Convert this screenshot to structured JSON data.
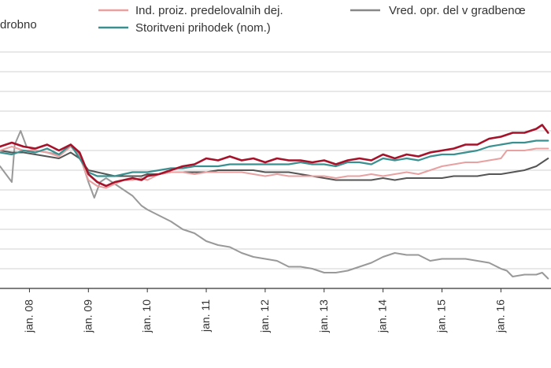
{
  "chart_data": {
    "type": "line",
    "title": "",
    "xlabel": "",
    "ylabel": "",
    "x_start": 2007.5,
    "x_end": 2016.85,
    "ylim": [
      0,
      12
    ],
    "grid": true,
    "x_ticks": [
      {
        "label": "jan. 08",
        "x": 2008
      },
      {
        "label": "jan. 09",
        "x": 2009
      },
      {
        "label": "jan. 10",
        "x": 2010
      },
      {
        "label": "jan. 11",
        "x": 2011
      },
      {
        "label": "jan. 12",
        "x": 2012
      },
      {
        "label": "jan. 13",
        "x": 2013
      },
      {
        "label": "jan. 14",
        "x": 2014
      },
      {
        "label": "jan. 15",
        "x": 2015
      },
      {
        "label": "jan. 16",
        "x": 2016
      }
    ],
    "legend": [
      {
        "series": "retail",
        "label": "drobno",
        "color": "#555555"
      },
      {
        "series": "manufacturing",
        "label": "Ind. proiz. predelovalnih dej.",
        "color": "#e8a0a0"
      },
      {
        "series": "services",
        "label": "Storitveni prihodek (nom.)",
        "color": "#3a9090"
      },
      {
        "series": "construction",
        "label": "Vred. opr. del v gradbenœ",
        "color": "#888888"
      }
    ],
    "series": [
      {
        "name": "retail",
        "color": "#a5122a",
        "width": 2.6,
        "points": [
          [
            2007.5,
            7.2
          ],
          [
            2007.7,
            7.4
          ],
          [
            2007.9,
            7.2
          ],
          [
            2008.1,
            7.1
          ],
          [
            2008.3,
            7.3
          ],
          [
            2008.5,
            7.0
          ],
          [
            2008.7,
            7.3
          ],
          [
            2008.85,
            6.9
          ],
          [
            2009.0,
            5.8
          ],
          [
            2009.15,
            5.4
          ],
          [
            2009.3,
            5.2
          ],
          [
            2009.45,
            5.4
          ],
          [
            2009.6,
            5.5
          ],
          [
            2009.75,
            5.6
          ],
          [
            2009.9,
            5.5
          ],
          [
            2010.0,
            5.7
          ],
          [
            2010.2,
            5.8
          ],
          [
            2010.4,
            6.0
          ],
          [
            2010.6,
            6.2
          ],
          [
            2010.8,
            6.3
          ],
          [
            2011.0,
            6.6
          ],
          [
            2011.2,
            6.5
          ],
          [
            2011.4,
            6.7
          ],
          [
            2011.6,
            6.5
          ],
          [
            2011.8,
            6.6
          ],
          [
            2012.0,
            6.4
          ],
          [
            2012.2,
            6.6
          ],
          [
            2012.4,
            6.5
          ],
          [
            2012.6,
            6.5
          ],
          [
            2012.8,
            6.4
          ],
          [
            2013.0,
            6.5
          ],
          [
            2013.2,
            6.3
          ],
          [
            2013.4,
            6.5
          ],
          [
            2013.6,
            6.6
          ],
          [
            2013.8,
            6.5
          ],
          [
            2014.0,
            6.8
          ],
          [
            2014.2,
            6.6
          ],
          [
            2014.4,
            6.8
          ],
          [
            2014.6,
            6.7
          ],
          [
            2014.8,
            6.9
          ],
          [
            2015.0,
            7.0
          ],
          [
            2015.2,
            7.1
          ],
          [
            2015.4,
            7.3
          ],
          [
            2015.6,
            7.3
          ],
          [
            2015.8,
            7.6
          ],
          [
            2016.0,
            7.7
          ],
          [
            2016.2,
            7.9
          ],
          [
            2016.4,
            7.9
          ],
          [
            2016.6,
            8.1
          ],
          [
            2016.7,
            8.3
          ],
          [
            2016.8,
            7.9
          ]
        ]
      },
      {
        "name": "manufacturing",
        "color": "#e8a0a0",
        "width": 2.0,
        "points": [
          [
            2007.5,
            7.0
          ],
          [
            2007.7,
            7.2
          ],
          [
            2007.9,
            7.0
          ],
          [
            2008.1,
            7.0
          ],
          [
            2008.3,
            6.9
          ],
          [
            2008.5,
            6.7
          ],
          [
            2008.7,
            7.2
          ],
          [
            2008.85,
            6.7
          ],
          [
            2009.0,
            5.5
          ],
          [
            2009.15,
            5.2
          ],
          [
            2009.3,
            5.1
          ],
          [
            2009.45,
            5.3
          ],
          [
            2009.6,
            5.5
          ],
          [
            2009.75,
            5.5
          ],
          [
            2009.9,
            5.6
          ],
          [
            2010.0,
            5.5
          ],
          [
            2010.2,
            5.8
          ],
          [
            2010.4,
            5.9
          ],
          [
            2010.6,
            5.9
          ],
          [
            2010.8,
            5.8
          ],
          [
            2011.0,
            5.9
          ],
          [
            2011.2,
            5.9
          ],
          [
            2011.4,
            5.9
          ],
          [
            2011.6,
            5.9
          ],
          [
            2011.8,
            5.8
          ],
          [
            2012.0,
            5.7
          ],
          [
            2012.2,
            5.8
          ],
          [
            2012.4,
            5.7
          ],
          [
            2012.6,
            5.7
          ],
          [
            2012.8,
            5.7
          ],
          [
            2013.0,
            5.7
          ],
          [
            2013.2,
            5.6
          ],
          [
            2013.4,
            5.7
          ],
          [
            2013.6,
            5.7
          ],
          [
            2013.8,
            5.8
          ],
          [
            2014.0,
            5.7
          ],
          [
            2014.2,
            5.8
          ],
          [
            2014.4,
            5.9
          ],
          [
            2014.6,
            5.8
          ],
          [
            2014.8,
            6.0
          ],
          [
            2015.0,
            6.2
          ],
          [
            2015.2,
            6.3
          ],
          [
            2015.4,
            6.4
          ],
          [
            2015.6,
            6.4
          ],
          [
            2015.8,
            6.5
          ],
          [
            2016.0,
            6.6
          ],
          [
            2016.1,
            7.0
          ],
          [
            2016.2,
            7.0
          ],
          [
            2016.4,
            7.0
          ],
          [
            2016.6,
            7.1
          ],
          [
            2016.8,
            7.1
          ]
        ]
      },
      {
        "name": "services",
        "color": "#3a9090",
        "width": 2.2,
        "points": [
          [
            2007.5,
            6.9
          ],
          [
            2007.7,
            6.8
          ],
          [
            2007.9,
            7.0
          ],
          [
            2008.1,
            6.9
          ],
          [
            2008.3,
            7.1
          ],
          [
            2008.5,
            6.8
          ],
          [
            2008.7,
            7.3
          ],
          [
            2008.85,
            6.6
          ],
          [
            2009.0,
            5.9
          ],
          [
            2009.15,
            5.7
          ],
          [
            2009.3,
            5.7
          ],
          [
            2009.45,
            5.7
          ],
          [
            2009.6,
            5.8
          ],
          [
            2009.75,
            5.9
          ],
          [
            2009.9,
            5.9
          ],
          [
            2010.0,
            5.9
          ],
          [
            2010.2,
            6.0
          ],
          [
            2010.4,
            6.1
          ],
          [
            2010.6,
            6.1
          ],
          [
            2010.8,
            6.2
          ],
          [
            2011.0,
            6.2
          ],
          [
            2011.2,
            6.2
          ],
          [
            2011.4,
            6.3
          ],
          [
            2011.6,
            6.3
          ],
          [
            2011.8,
            6.3
          ],
          [
            2012.0,
            6.3
          ],
          [
            2012.2,
            6.3
          ],
          [
            2012.4,
            6.3
          ],
          [
            2012.6,
            6.4
          ],
          [
            2012.8,
            6.3
          ],
          [
            2013.0,
            6.3
          ],
          [
            2013.2,
            6.2
          ],
          [
            2013.4,
            6.4
          ],
          [
            2013.6,
            6.4
          ],
          [
            2013.8,
            6.3
          ],
          [
            2014.0,
            6.6
          ],
          [
            2014.2,
            6.5
          ],
          [
            2014.4,
            6.6
          ],
          [
            2014.6,
            6.5
          ],
          [
            2014.8,
            6.7
          ],
          [
            2015.0,
            6.8
          ],
          [
            2015.2,
            6.8
          ],
          [
            2015.4,
            6.9
          ],
          [
            2015.6,
            7.0
          ],
          [
            2015.8,
            7.2
          ],
          [
            2016.0,
            7.3
          ],
          [
            2016.2,
            7.4
          ],
          [
            2016.4,
            7.4
          ],
          [
            2016.6,
            7.5
          ],
          [
            2016.8,
            7.5
          ]
        ]
      },
      {
        "name": "construction",
        "color": "#999999",
        "width": 2.0,
        "points": [
          [
            2007.5,
            6.2
          ],
          [
            2007.6,
            5.8
          ],
          [
            2007.7,
            5.4
          ],
          [
            2007.75,
            7.3
          ],
          [
            2007.85,
            8.0
          ],
          [
            2007.95,
            7.2
          ],
          [
            2008.1,
            7.0
          ],
          [
            2008.3,
            6.9
          ],
          [
            2008.5,
            6.8
          ],
          [
            2008.7,
            7.2
          ],
          [
            2008.85,
            6.8
          ],
          [
            2009.0,
            5.4
          ],
          [
            2009.1,
            4.6
          ],
          [
            2009.2,
            5.4
          ],
          [
            2009.3,
            5.6
          ],
          [
            2009.45,
            5.3
          ],
          [
            2009.6,
            5.0
          ],
          [
            2009.75,
            4.7
          ],
          [
            2009.9,
            4.2
          ],
          [
            2010.0,
            4.0
          ],
          [
            2010.2,
            3.7
          ],
          [
            2010.4,
            3.4
          ],
          [
            2010.6,
            3.0
          ],
          [
            2010.8,
            2.8
          ],
          [
            2011.0,
            2.4
          ],
          [
            2011.2,
            2.2
          ],
          [
            2011.4,
            2.1
          ],
          [
            2011.6,
            1.8
          ],
          [
            2011.8,
            1.6
          ],
          [
            2012.0,
            1.5
          ],
          [
            2012.2,
            1.4
          ],
          [
            2012.4,
            1.1
          ],
          [
            2012.6,
            1.1
          ],
          [
            2012.8,
            1.0
          ],
          [
            2013.0,
            0.8
          ],
          [
            2013.2,
            0.8
          ],
          [
            2013.4,
            0.9
          ],
          [
            2013.6,
            1.1
          ],
          [
            2013.8,
            1.3
          ],
          [
            2014.0,
            1.6
          ],
          [
            2014.2,
            1.8
          ],
          [
            2014.4,
            1.7
          ],
          [
            2014.6,
            1.7
          ],
          [
            2014.8,
            1.4
          ],
          [
            2015.0,
            1.5
          ],
          [
            2015.2,
            1.5
          ],
          [
            2015.4,
            1.5
          ],
          [
            2015.6,
            1.4
          ],
          [
            2015.8,
            1.3
          ],
          [
            2016.0,
            1.0
          ],
          [
            2016.1,
            0.9
          ],
          [
            2016.2,
            0.6
          ],
          [
            2016.4,
            0.7
          ],
          [
            2016.6,
            0.7
          ],
          [
            2016.7,
            0.8
          ],
          [
            2016.8,
            0.5
          ]
        ]
      },
      {
        "name": "construction-dark",
        "color": "#555555",
        "width": 2.0,
        "points": [
          [
            2007.5,
            7.0
          ],
          [
            2007.7,
            6.9
          ],
          [
            2007.9,
            6.9
          ],
          [
            2008.1,
            6.8
          ],
          [
            2008.3,
            6.7
          ],
          [
            2008.5,
            6.6
          ],
          [
            2008.7,
            6.9
          ],
          [
            2008.85,
            6.6
          ],
          [
            2009.0,
            6.0
          ],
          [
            2009.15,
            5.9
          ],
          [
            2009.3,
            5.8
          ],
          [
            2009.45,
            5.7
          ],
          [
            2009.6,
            5.7
          ],
          [
            2009.75,
            5.7
          ],
          [
            2009.9,
            5.7
          ],
          [
            2010.0,
            5.8
          ],
          [
            2010.2,
            5.8
          ],
          [
            2010.4,
            5.9
          ],
          [
            2010.6,
            5.9
          ],
          [
            2010.8,
            5.9
          ],
          [
            2011.0,
            5.9
          ],
          [
            2011.2,
            6.0
          ],
          [
            2011.4,
            6.0
          ],
          [
            2011.6,
            6.0
          ],
          [
            2011.8,
            6.0
          ],
          [
            2012.0,
            5.9
          ],
          [
            2012.2,
            5.9
          ],
          [
            2012.4,
            5.9
          ],
          [
            2012.6,
            5.8
          ],
          [
            2012.8,
            5.7
          ],
          [
            2013.0,
            5.6
          ],
          [
            2013.2,
            5.5
          ],
          [
            2013.4,
            5.5
          ],
          [
            2013.6,
            5.5
          ],
          [
            2013.8,
            5.5
          ],
          [
            2014.0,
            5.6
          ],
          [
            2014.2,
            5.5
          ],
          [
            2014.4,
            5.6
          ],
          [
            2014.6,
            5.6
          ],
          [
            2014.8,
            5.6
          ],
          [
            2015.0,
            5.6
          ],
          [
            2015.2,
            5.7
          ],
          [
            2015.4,
            5.7
          ],
          [
            2015.6,
            5.7
          ],
          [
            2015.8,
            5.8
          ],
          [
            2016.0,
            5.8
          ],
          [
            2016.2,
            5.9
          ],
          [
            2016.4,
            6.0
          ],
          [
            2016.6,
            6.2
          ],
          [
            2016.8,
            6.6
          ]
        ]
      }
    ]
  }
}
